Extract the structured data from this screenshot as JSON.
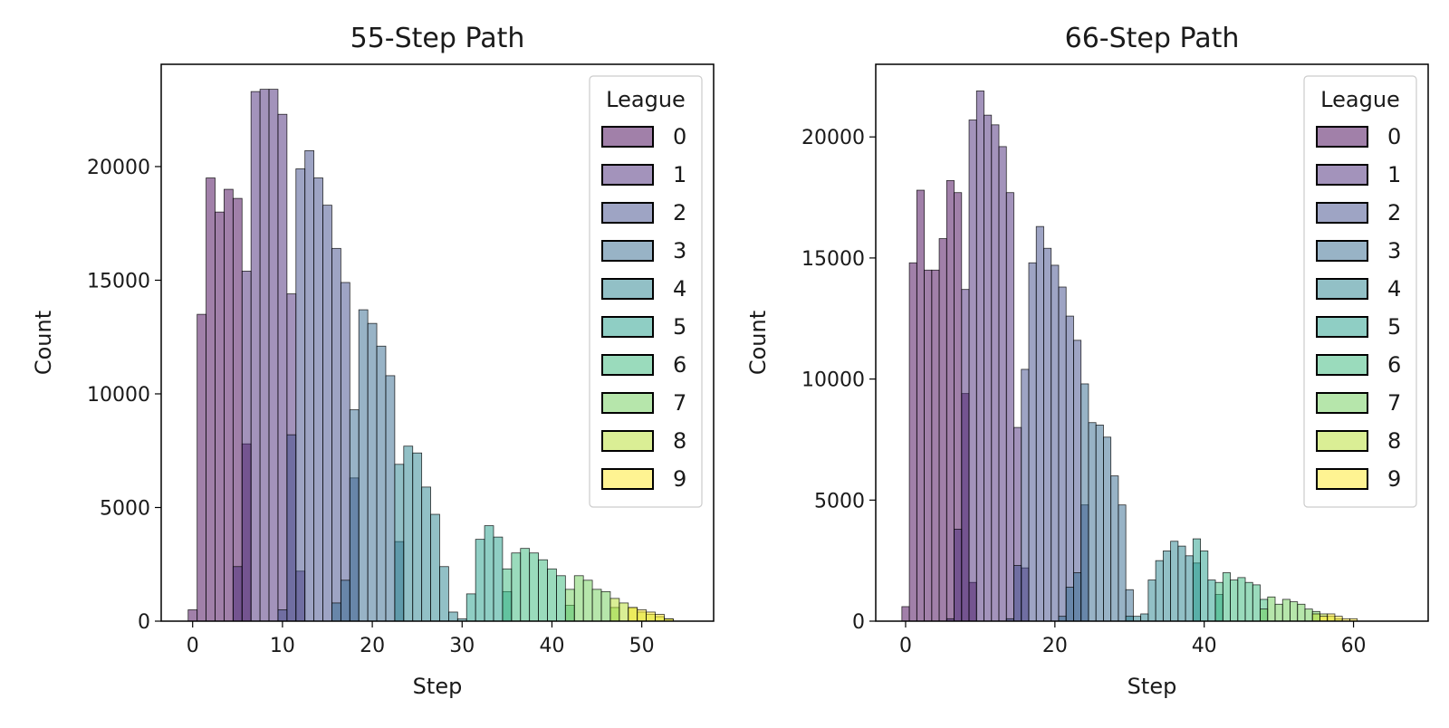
{
  "chart_data": [
    {
      "type": "histogram",
      "title": "55-Step Path",
      "xlabel": "Step",
      "ylabel": "Count",
      "xlim": [
        -3.5,
        58
      ],
      "ylim": [
        0,
        24500
      ],
      "xticks": [
        0,
        10,
        20,
        30,
        40,
        50
      ],
      "yticks": [
        0,
        5000,
        10000,
        15000,
        20000
      ],
      "bin_width": 1,
      "legend": {
        "title": "League",
        "position": "upper right",
        "entries": [
          "0",
          "1",
          "2",
          "3",
          "4",
          "5",
          "6",
          "7",
          "8",
          "9"
        ]
      },
      "series": [
        {
          "name": "0",
          "bins": [
            [
              0,
              500
            ],
            [
              1,
              13500
            ],
            [
              2,
              19500
            ],
            [
              3,
              18000
            ],
            [
              4,
              19000
            ],
            [
              5,
              18600
            ],
            [
              6,
              7800
            ]
          ]
        },
        {
          "name": "1",
          "bins": [
            [
              5,
              2400
            ],
            [
              6,
              15400
            ],
            [
              7,
              23300
            ],
            [
              8,
              23400
            ],
            [
              9,
              23400
            ],
            [
              10,
              22300
            ],
            [
              11,
              14400
            ],
            [
              12,
              2200
            ]
          ]
        },
        {
          "name": "2",
          "bins": [
            [
              10,
              500
            ],
            [
              11,
              8200
            ],
            [
              12,
              19900
            ],
            [
              13,
              20700
            ],
            [
              14,
              19500
            ],
            [
              15,
              18300
            ],
            [
              16,
              16400
            ],
            [
              17,
              14900
            ],
            [
              18,
              6300
            ]
          ]
        },
        {
          "name": "3",
          "bins": [
            [
              16,
              800
            ],
            [
              17,
              1800
            ],
            [
              18,
              9300
            ],
            [
              19,
              13700
            ],
            [
              20,
              13100
            ],
            [
              21,
              12100
            ],
            [
              22,
              10800
            ],
            [
              23,
              3500
            ]
          ]
        },
        {
          "name": "4",
          "bins": [
            [
              23,
              6900
            ],
            [
              24,
              7700
            ],
            [
              25,
              7400
            ],
            [
              26,
              5900
            ],
            [
              27,
              4700
            ],
            [
              28,
              2400
            ],
            [
              29,
              400
            ],
            [
              30,
              100
            ]
          ]
        },
        {
          "name": "5",
          "bins": [
            [
              31,
              1200
            ],
            [
              32,
              3600
            ],
            [
              33,
              4200
            ],
            [
              34,
              3700
            ],
            [
              35,
              1300
            ]
          ]
        },
        {
          "name": "6",
          "bins": [
            [
              35,
              2300
            ],
            [
              36,
              3000
            ],
            [
              37,
              3200
            ],
            [
              38,
              3000
            ],
            [
              39,
              2700
            ],
            [
              40,
              2300
            ],
            [
              41,
              2000
            ],
            [
              42,
              700
            ]
          ]
        },
        {
          "name": "7",
          "bins": [
            [
              42,
              1400
            ],
            [
              43,
              2000
            ],
            [
              44,
              1800
            ],
            [
              45,
              1400
            ],
            [
              46,
              1300
            ],
            [
              47,
              600
            ]
          ]
        },
        {
          "name": "8",
          "bins": [
            [
              47,
              1000
            ],
            [
              48,
              800
            ],
            [
              49,
              600
            ],
            [
              50,
              400
            ],
            [
              51,
              300
            ],
            [
              52,
              200
            ],
            [
              53,
              100
            ]
          ]
        },
        {
          "name": "9",
          "bins": [
            [
              49,
              600
            ],
            [
              50,
              500
            ],
            [
              51,
              400
            ],
            [
              52,
              300
            ],
            [
              53,
              100
            ]
          ]
        }
      ]
    },
    {
      "type": "histogram",
      "title": "66-Step Path",
      "xlabel": "Step",
      "ylabel": "Count",
      "xlim": [
        -4,
        70
      ],
      "ylim": [
        0,
        23000
      ],
      "xticks": [
        0,
        20,
        40,
        60
      ],
      "yticks": [
        0,
        5000,
        10000,
        15000,
        20000
      ],
      "bin_width": 1,
      "legend": {
        "title": "League",
        "position": "upper right",
        "entries": [
          "0",
          "1",
          "2",
          "3",
          "4",
          "5",
          "6",
          "7",
          "8",
          "9"
        ]
      },
      "series": [
        {
          "name": "0",
          "bins": [
            [
              0,
              600
            ],
            [
              1,
              14800
            ],
            [
              2,
              17800
            ],
            [
              3,
              14500
            ],
            [
              4,
              14500
            ],
            [
              5,
              15800
            ],
            [
              6,
              18200
            ],
            [
              7,
              17700
            ],
            [
              8,
              9400
            ],
            [
              9,
              1600
            ]
          ]
        },
        {
          "name": "1",
          "bins": [
            [
              6,
              100
            ],
            [
              7,
              3800
            ],
            [
              8,
              13700
            ],
            [
              9,
              20700
            ],
            [
              10,
              21900
            ],
            [
              11,
              20900
            ],
            [
              12,
              20500
            ],
            [
              13,
              19600
            ],
            [
              14,
              17700
            ],
            [
              15,
              8000
            ],
            [
              16,
              2200
            ]
          ]
        },
        {
          "name": "2",
          "bins": [
            [
              14,
              100
            ],
            [
              15,
              2300
            ],
            [
              16,
              10400
            ],
            [
              17,
              14800
            ],
            [
              18,
              16300
            ],
            [
              19,
              15400
            ],
            [
              20,
              14700
            ],
            [
              21,
              13800
            ],
            [
              22,
              12600
            ],
            [
              23,
              11600
            ],
            [
              24,
              4800
            ]
          ]
        },
        {
          "name": "3",
          "bins": [
            [
              21,
              200
            ],
            [
              22,
              1400
            ],
            [
              23,
              2000
            ],
            [
              24,
              9800
            ],
            [
              25,
              8200
            ],
            [
              26,
              8100
            ],
            [
              27,
              7600
            ],
            [
              28,
              6000
            ],
            [
              29,
              4800
            ],
            [
              30,
              1300
            ]
          ]
        },
        {
          "name": "4",
          "bins": [
            [
              30,
              200
            ],
            [
              31,
              200
            ],
            [
              32,
              300
            ],
            [
              33,
              1700
            ],
            [
              34,
              2500
            ],
            [
              35,
              2900
            ],
            [
              36,
              3300
            ],
            [
              37,
              3100
            ],
            [
              38,
              2700
            ],
            [
              39,
              2400
            ]
          ]
        },
        {
          "name": "5",
          "bins": [
            [
              39,
              3400
            ],
            [
              40,
              2900
            ],
            [
              41,
              1700
            ],
            [
              42,
              1100
            ]
          ]
        },
        {
          "name": "6",
          "bins": [
            [
              42,
              1600
            ],
            [
              43,
              2000
            ],
            [
              44,
              1700
            ],
            [
              45,
              1800
            ],
            [
              46,
              1600
            ],
            [
              47,
              1500
            ],
            [
              48,
              900
            ]
          ]
        },
        {
          "name": "7",
          "bins": [
            [
              48,
              500
            ],
            [
              49,
              1000
            ],
            [
              50,
              700
            ],
            [
              51,
              900
            ],
            [
              52,
              800
            ],
            [
              53,
              700
            ],
            [
              54,
              500
            ],
            [
              55,
              400
            ]
          ]
        },
        {
          "name": "8",
          "bins": [
            [
              55,
              300
            ],
            [
              56,
              300
            ],
            [
              57,
              200
            ],
            [
              58,
              100
            ]
          ]
        },
        {
          "name": "9",
          "bins": [
            [
              56,
              200
            ],
            [
              57,
              300
            ],
            [
              58,
              200
            ],
            [
              59,
              100
            ],
            [
              60,
              100
            ]
          ]
        }
      ]
    }
  ],
  "colors": {
    "0": "#440154",
    "1": "#482878",
    "2": "#3e4a89",
    "3": "#31688e",
    "4": "#26828e",
    "5": "#1f9e89",
    "6": "#35b779",
    "7": "#6ece58",
    "8": "#b5de2b",
    "9": "#fde725"
  },
  "bar_alpha": 0.5
}
